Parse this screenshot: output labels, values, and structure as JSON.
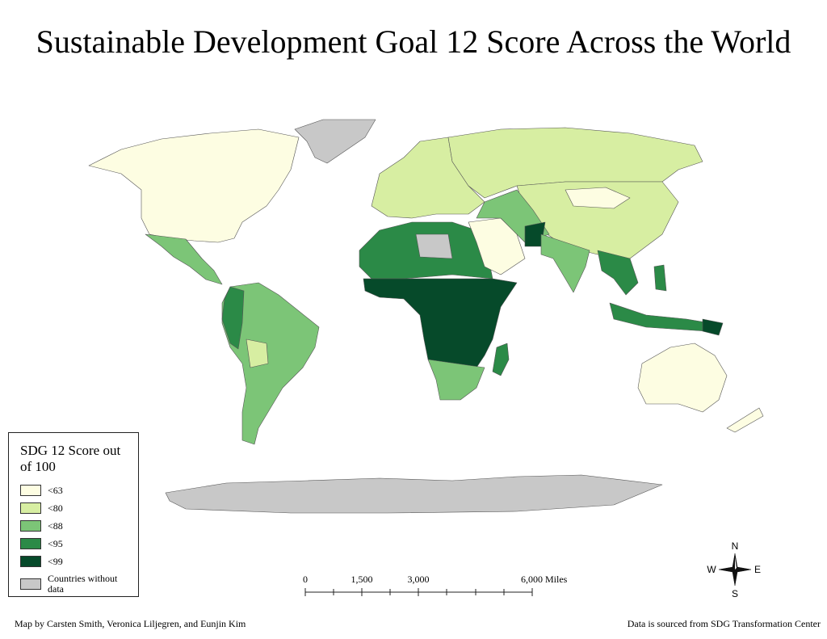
{
  "header": {
    "title": "Sustainable Development Goal 12 Score Across the World"
  },
  "legend": {
    "title": "SDG 12 Score out of 100",
    "items": [
      {
        "label": "<63",
        "color": "#fdfde2"
      },
      {
        "label": "<80",
        "color": "#d7eea2"
      },
      {
        "label": "<88",
        "color": "#7cc577"
      },
      {
        "label": "<95",
        "color": "#2b8a47"
      },
      {
        "label": "<99",
        "color": "#064a2a"
      },
      {
        "label": "Countries without data",
        "color": "#c8c8c8"
      }
    ]
  },
  "scale_bar": {
    "labels": [
      "0",
      "1,500",
      "3,000",
      "6,000 Miles"
    ]
  },
  "compass": {
    "north": "N",
    "south": "S",
    "east": "E",
    "west": "W"
  },
  "footer": {
    "credit": "Map by Carsten Smith, Veronica Liljegren, and Eunjin Kim",
    "source": "Data is sourced from SDG Transformation Center"
  }
}
